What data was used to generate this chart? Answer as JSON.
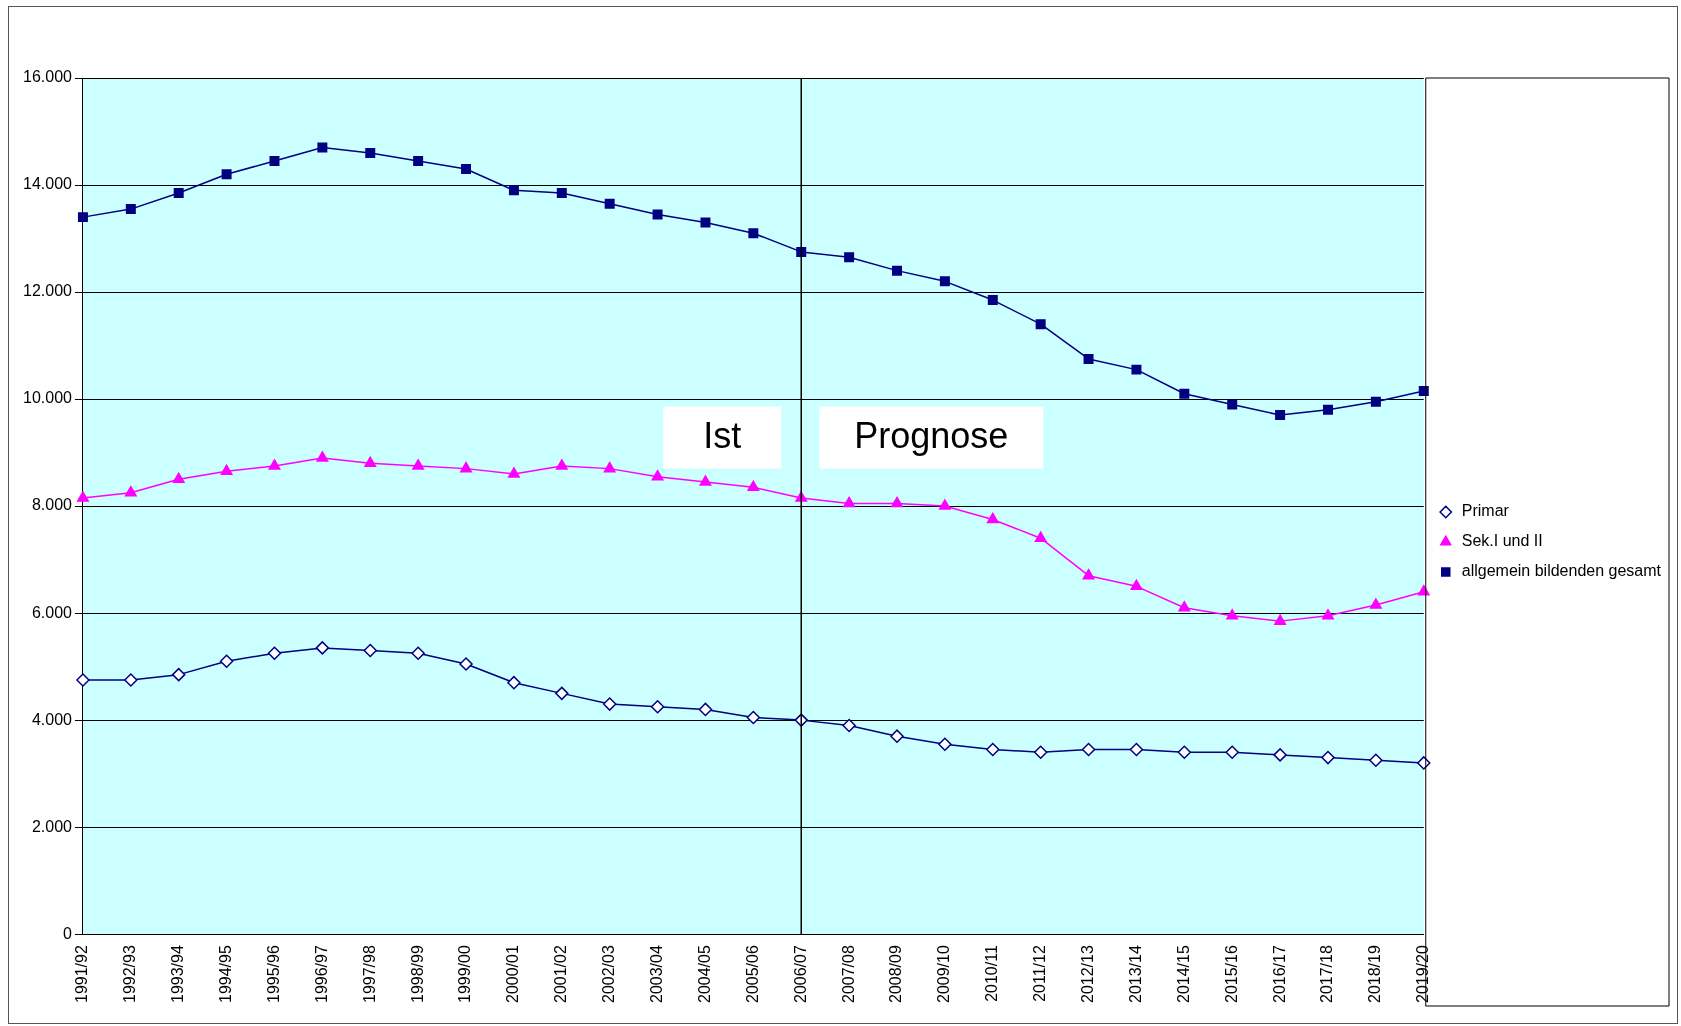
{
  "chart_data": {
    "type": "line",
    "categories": [
      "1991/92",
      "1992/93",
      "1993/94",
      "1994/95",
      "1995/96",
      "1996/97",
      "1997/98",
      "1998/99",
      "1999/00",
      "2000/01",
      "2001/02",
      "2002/03",
      "2003/04",
      "2004/05",
      "2005/06",
      "2006/07",
      "2007/08",
      "2008/09",
      "2009/10",
      "2010/11",
      "2011/12",
      "2012/13",
      "2013/14",
      "2014/15",
      "2015/16",
      "2016/17",
      "2017/18",
      "2018/19",
      "2019/20"
    ],
    "series": [
      {
        "name": "Primar",
        "color": "#000080",
        "marker": "diamond",
        "values": [
          4750,
          4750,
          4850,
          5100,
          5250,
          5350,
          5300,
          5250,
          5050,
          4700,
          4500,
          4300,
          4250,
          4200,
          4050,
          4000,
          3900,
          3700,
          3550,
          3450,
          3400,
          3450,
          3450,
          3400,
          3400,
          3350,
          3300,
          3250,
          3200
        ]
      },
      {
        "name": "Sek.I und II",
        "color": "#ff00ff",
        "marker": "triangle",
        "values": [
          8150,
          8250,
          8500,
          8650,
          8750,
          8900,
          8800,
          8750,
          8700,
          8600,
          8750,
          8700,
          8550,
          8450,
          8350,
          8150,
          8050,
          8050,
          8000,
          7750,
          7400,
          6700,
          6500,
          6100,
          5950,
          5850,
          5950,
          6150,
          6400
        ]
      },
      {
        "name": "allgemein bildenden gesamt",
        "color": "#000080",
        "marker": "square",
        "values": [
          13400,
          13550,
          13850,
          14200,
          14450,
          14700,
          14600,
          14450,
          14300,
          13900,
          13850,
          13650,
          13450,
          13300,
          13100,
          12750,
          12650,
          12400,
          12200,
          11850,
          11400,
          10750,
          10550,
          10100,
          9900,
          9700,
          9800,
          9950,
          10150
        ]
      }
    ],
    "ylim": [
      0,
      16000
    ],
    "yticks": [
      {
        "value": 0,
        "label": "0"
      },
      {
        "value": 2000,
        "label": "2.000"
      },
      {
        "value": 4000,
        "label": "4.000"
      },
      {
        "value": 6000,
        "label": "6.000"
      },
      {
        "value": 8000,
        "label": "8.000"
      },
      {
        "value": 10000,
        "label": "10.000"
      },
      {
        "value": 12000,
        "label": "12.000"
      },
      {
        "value": 14000,
        "label": "14.000"
      },
      {
        "value": 16000,
        "label": "16.000"
      }
    ],
    "grid": "y",
    "legend": "right",
    "line_style": "solid",
    "ref_lines": [
      {
        "axis": "x",
        "value": "2006/07",
        "color": "#000000"
      }
    ],
    "annotations": [
      "Ist",
      "Prognose"
    ]
  }
}
